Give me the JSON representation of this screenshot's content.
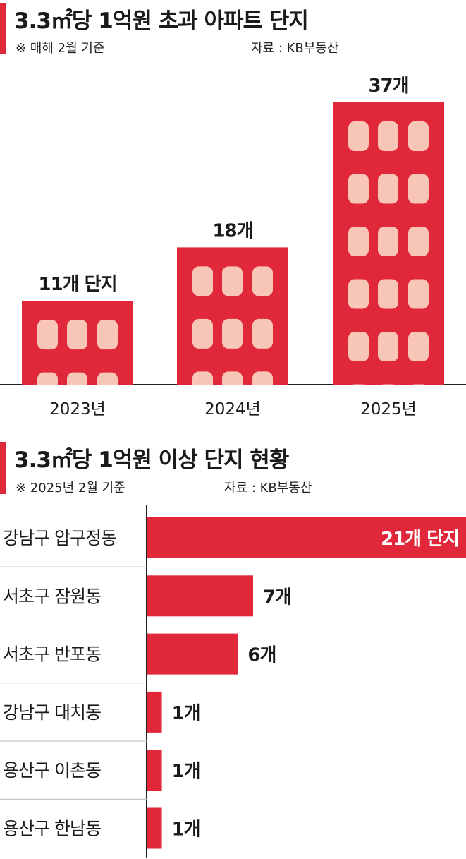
{
  "chart1": {
    "title": "3.3㎡당 1억원 초과 아파트 단지",
    "note": "※ 매해 2월 기준",
    "source": "자료 : KB부동산",
    "colors": {
      "building": "#e0283a",
      "window": "#f7c6b6"
    },
    "icons": [
      "building-icon"
    ]
  },
  "chart2": {
    "title": "3.3㎡당 1억원 이상 단지 현황",
    "note": "※ 2025년 2월 기준",
    "source": "자료 : KB부동산",
    "colors": {
      "bar": "#e0283a"
    }
  },
  "chart_data": [
    {
      "type": "bar",
      "title": "3.3㎡당 1억원 초과 아파트 단지",
      "categories": [
        "2023년",
        "2024년",
        "2025년"
      ],
      "values": [
        11,
        18,
        37
      ],
      "data_labels": [
        "11개 단지",
        "18개",
        "37개"
      ],
      "xlabel": "",
      "ylabel": ""
    },
    {
      "type": "bar",
      "orientation": "horizontal",
      "title": "3.3㎡당 1억원 이상 단지 현황",
      "categories": [
        "강남구 압구정동",
        "서초구 잠원동",
        "서초구 반포동",
        "강남구 대치동",
        "용산구 이촌동",
        "용산구 한남동"
      ],
      "values": [
        21,
        7,
        6,
        1,
        1,
        1
      ],
      "data_labels": [
        "21개 단지",
        "7개",
        "6개",
        "1개",
        "1개",
        "1개"
      ],
      "xlabel": "",
      "ylabel": ""
    }
  ]
}
